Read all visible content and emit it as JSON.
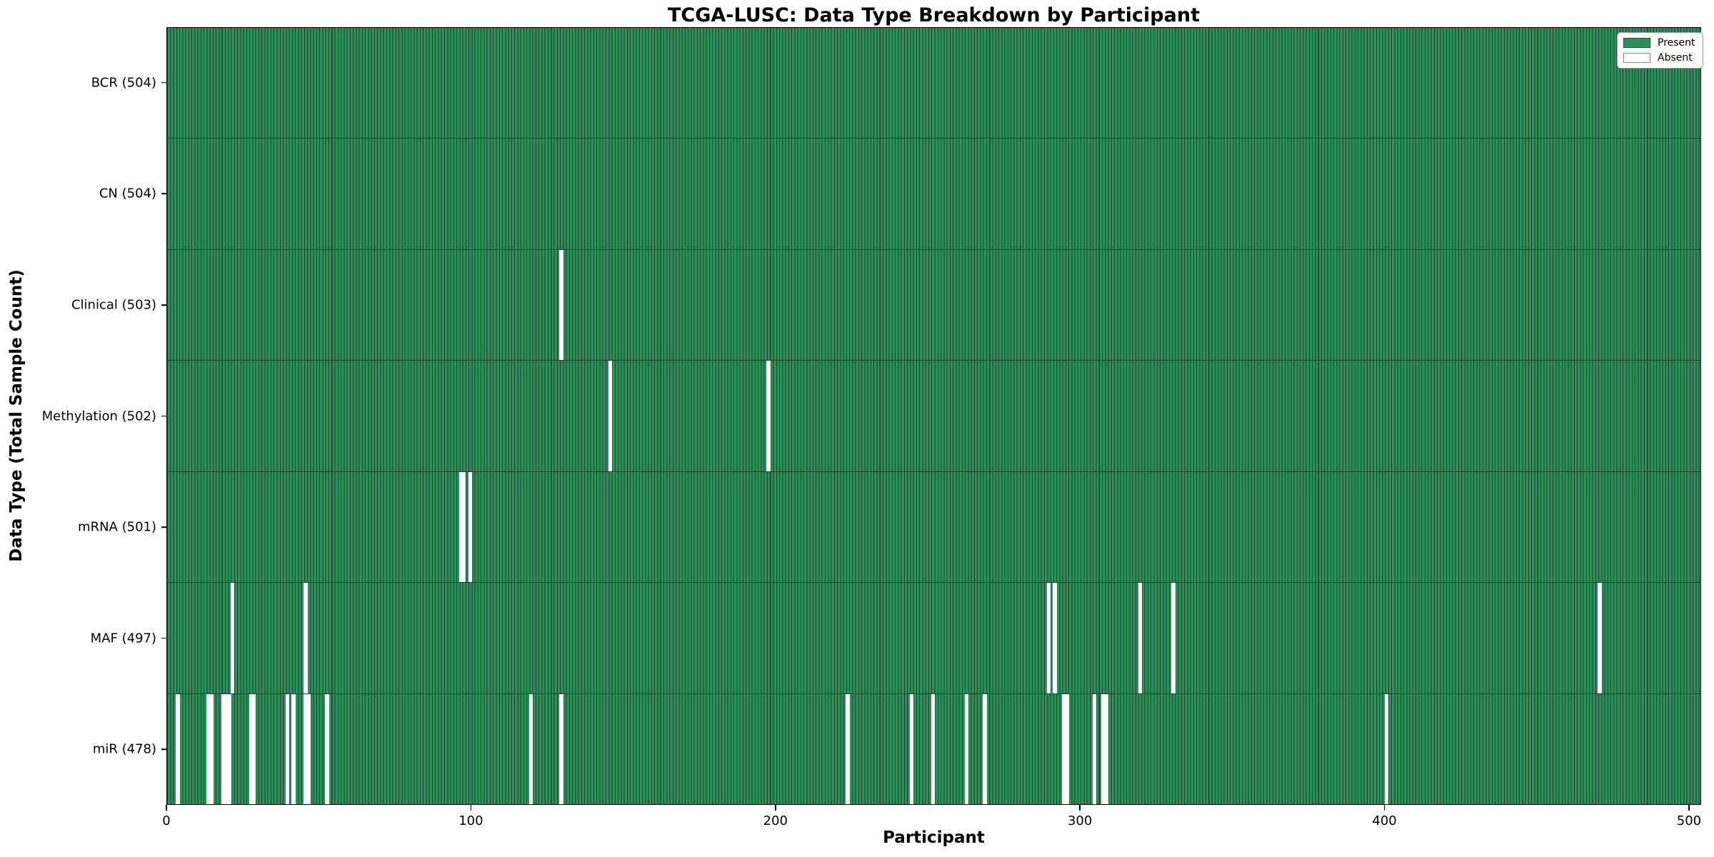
{
  "title": "TCGA-LUSC: Data Type Breakdown by Participant",
  "chart_data": {
    "type": "heatmap",
    "title": "TCGA-LUSC: Data Type Breakdown by Participant",
    "xlabel": "Participant",
    "ylabel": "Data Type (Total Sample Count)",
    "n_participants": 504,
    "xlim": [
      0,
      504
    ],
    "x_ticks": [
      "0",
      "100",
      "200",
      "300",
      "400",
      "500"
    ],
    "x_tick_values": [
      0,
      100,
      200,
      300,
      400,
      500
    ],
    "grid": false,
    "legend_position": "upper right",
    "legend": [
      {
        "label": "Present",
        "color": "#2f8f5c"
      },
      {
        "label": "Absent",
        "color": "#ffffff"
      }
    ],
    "colors": {
      "present_fill": "#2f8f5c",
      "bar_edge": "#17422c",
      "absent_fill": "#ffffff",
      "row_separator": "#16402a"
    },
    "rows": [
      {
        "label": "BCR (504)",
        "data_type": "BCR",
        "present_count": 504,
        "absent_participants": []
      },
      {
        "label": "CN (504)",
        "data_type": "CN",
        "present_count": 504,
        "absent_participants": []
      },
      {
        "label": "Clinical (503)",
        "data_type": "Clinical",
        "present_count": 503,
        "absent_participants": [
          129
        ]
      },
      {
        "label": "Methylation (502)",
        "data_type": "Methylation",
        "present_count": 502,
        "absent_participants": [
          145,
          197
        ]
      },
      {
        "label": "mRNA (501)",
        "data_type": "mRNA",
        "present_count": 501,
        "absent_participants": [
          96,
          97,
          99
        ]
      },
      {
        "label": "MAF (497)",
        "data_type": "MAF",
        "present_count": 497,
        "absent_participants": [
          21,
          45,
          289,
          291,
          319,
          330,
          470
        ]
      },
      {
        "label": "miR (478)",
        "data_type": "miR",
        "present_count": 478,
        "absent_participants": [
          3,
          13,
          14,
          18,
          19,
          20,
          27,
          28,
          39,
          41,
          45,
          46,
          52,
          119,
          129,
          223,
          244,
          251,
          262,
          268,
          294,
          295,
          304,
          307,
          308,
          400
        ]
      }
    ]
  }
}
